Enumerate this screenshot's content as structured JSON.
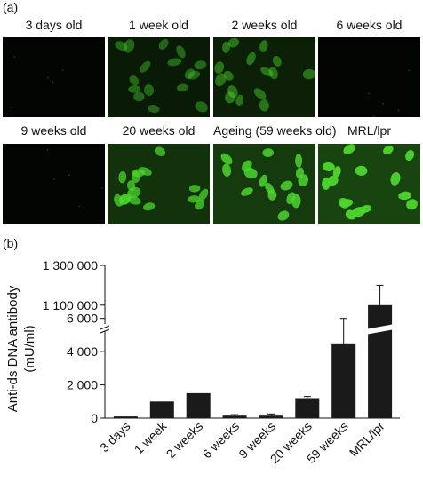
{
  "panel_a": {
    "label": "(a)",
    "images": [
      {
        "label": "3 days old",
        "intensity": 0.02
      },
      {
        "label": "1 week old",
        "intensity": 0.22
      },
      {
        "label": "2 weeks old",
        "intensity": 0.3
      },
      {
        "label": "6 weeks old",
        "intensity": 0.0
      },
      {
        "label": "9 weeks old",
        "intensity": 0.02
      },
      {
        "label": "20 weeks old",
        "intensity": 0.7
      },
      {
        "label": "Ageing (59 weeks old)",
        "intensity": 0.85
      },
      {
        "label": "MRL/lpr",
        "intensity": 1.0
      }
    ],
    "colors": {
      "background": "#020502",
      "stain": "#4cd62e"
    }
  },
  "panel_b": {
    "label": "(b)",
    "chart_data": {
      "type": "bar",
      "ylabel_line1": "Anti-ds DNA antibody",
      "ylabel_line2": "(mU/ml)",
      "categories": [
        "3 days",
        "1 week",
        "2 weeks",
        "6 weeks",
        "9 weeks",
        "20 weeks",
        "59 weeks",
        "MRL/lpr"
      ],
      "values": [
        100,
        1000,
        1500,
        150,
        150,
        1200,
        4500,
        1100000
      ],
      "errors": [
        0,
        0,
        0,
        60,
        100,
        100,
        1500,
        100000
      ],
      "lower_segment": {
        "ylim": [
          0,
          7000
        ],
        "ticks": [
          "0",
          "2 000",
          "4 000",
          "6 000"
        ],
        "tick_values": [
          0,
          2000,
          4000,
          6000
        ]
      },
      "upper_segment": {
        "ylim": [
          1050000,
          1300000
        ],
        "ticks": [
          "1 100 000",
          "1 300 000"
        ],
        "tick_values": [
          1100000,
          1300000
        ]
      },
      "axis_break": true,
      "bar_color": "#1a1a1a"
    }
  }
}
